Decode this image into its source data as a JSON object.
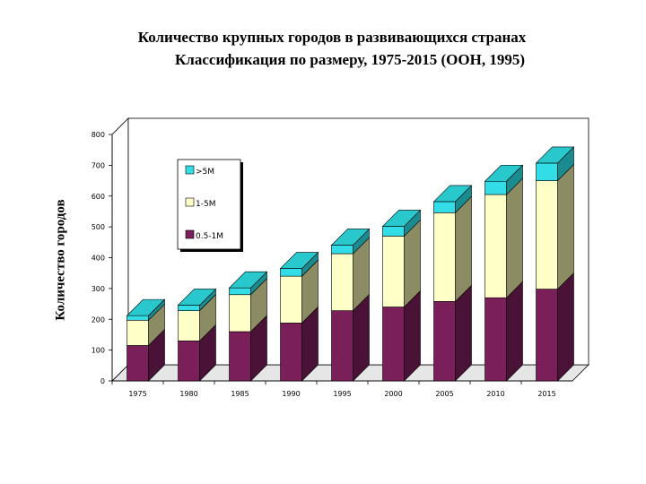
{
  "chart_data": {
    "type": "bar",
    "stacked": true,
    "three_d": true,
    "title": "Количество крупных городов в развивающихся странах",
    "subtitle": "Классификация по размеру, 1975-2015  (ООН, 1995)",
    "ylabel": "Количество городов",
    "xlabel": "",
    "ylim": [
      0,
      800
    ],
    "yticks": [
      0,
      100,
      200,
      300,
      400,
      500,
      600,
      700,
      800
    ],
    "categories": [
      "1975",
      "1980",
      "1985",
      "1990",
      "1995",
      "2000",
      "2005",
      "2010",
      "2015"
    ],
    "series": [
      {
        "name": "0.5-1M",
        "color": "#7b1f5a",
        "side": "#4a1236",
        "top": "#8e2a6a",
        "values": [
          115,
          130,
          160,
          188,
          228,
          240,
          258,
          270,
          298
        ]
      },
      {
        "name": "1-5M",
        "color": "#ffffc8",
        "side": "#8c8c64",
        "top": "#ffffdc",
        "values": [
          82,
          98,
          120,
          152,
          185,
          230,
          288,
          335,
          352
        ]
      },
      {
        "name": ">5M",
        "color": "#33dde8",
        "side": "#1a8b8f",
        "top": "#28c8cc",
        "values": [
          15,
          18,
          22,
          25,
          28,
          32,
          36,
          43,
          57
        ]
      }
    ],
    "legend_order": [
      ">5M",
      "1-5M",
      "0.5-1M"
    ],
    "legend_placement": "top-left inside plot",
    "grid": false
  }
}
